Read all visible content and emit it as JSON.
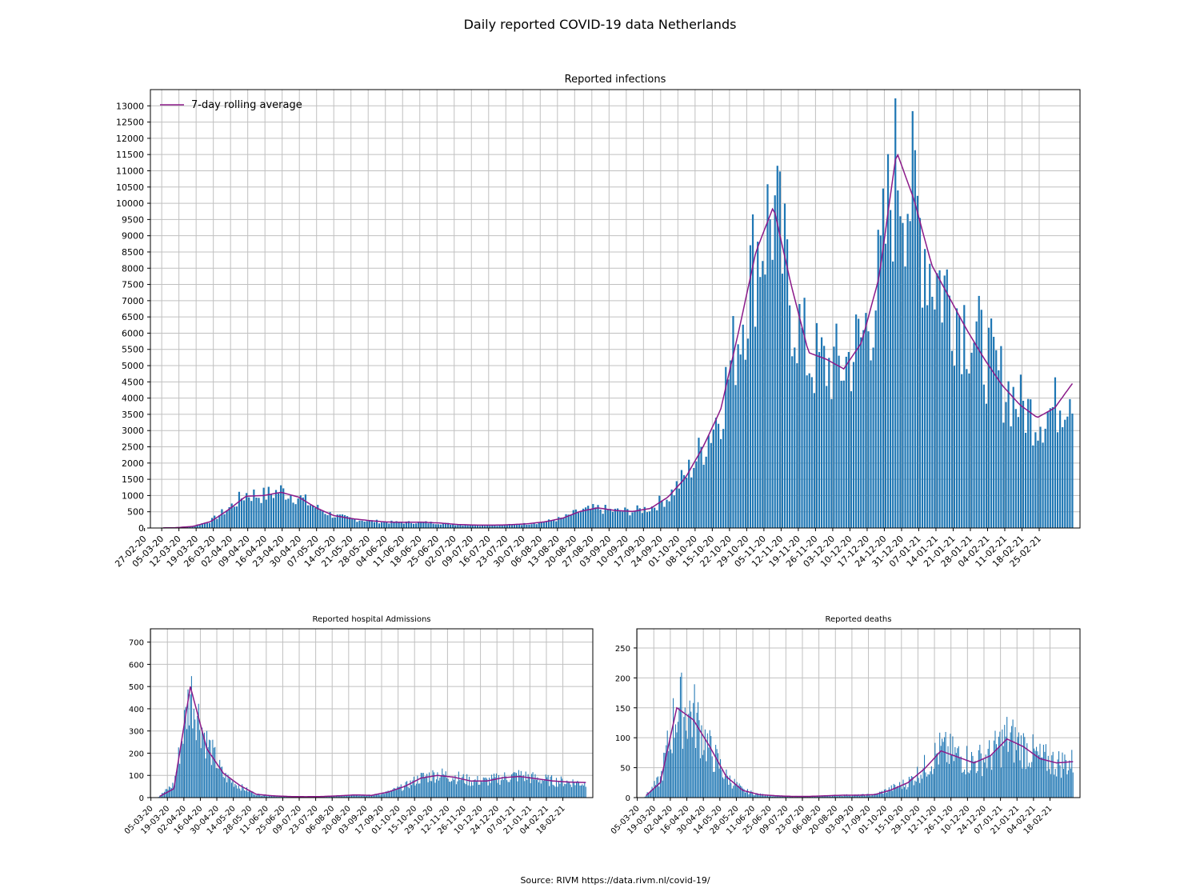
{
  "suptitle": "Daily reported COVID-19 data Netherlands",
  "source": "Source: RIVM https://data.rivm.nl/covid-19/",
  "colors": {
    "bar": "#1f77b4",
    "avg": "#8b1a89",
    "grid": "#c0c0c0"
  },
  "chart_data": [
    {
      "type": "bar",
      "title": "Reported infections",
      "legend": "7-day rolling average",
      "legend_position": "top-left",
      "grid": true,
      "x_tick_labels": [
        "27-02-20",
        "05-03-20",
        "12-03-20",
        "19-03-20",
        "26-03-20",
        "02-04-20",
        "09-04-20",
        "16-04-20",
        "23-04-20",
        "30-04-20",
        "07-05-20",
        "14-05-20",
        "21-05-20",
        "28-05-20",
        "04-06-20",
        "11-06-20",
        "18-06-20",
        "25-06-20",
        "02-07-20",
        "09-07-20",
        "16-07-20",
        "23-07-20",
        "30-07-20",
        "06-08-20",
        "13-08-20",
        "20-08-20",
        "27-08-20",
        "03-09-20",
        "10-09-20",
        "17-09-20",
        "24-09-20",
        "01-10-20",
        "08-10-20",
        "15-10-20",
        "22-10-20",
        "29-10-20",
        "05-11-20",
        "12-11-20",
        "19-11-20",
        "26-11-20",
        "03-12-20",
        "10-12-20",
        "17-12-20",
        "24-12-20",
        "31-12-20",
        "07-01-21",
        "14-01-21",
        "21-01-21",
        "28-01-21",
        "04-02-21",
        "11-02-21",
        "18-02-21",
        "25-02-21"
      ],
      "y_ticks": [
        0,
        500,
        1000,
        1500,
        2000,
        2500,
        3000,
        3500,
        4000,
        4500,
        5000,
        5500,
        6000,
        6500,
        7000,
        7500,
        8000,
        8500,
        9000,
        9500,
        10000,
        10500,
        11000,
        11500,
        12000,
        12500,
        13000
      ],
      "ylim": [
        0,
        13500
      ],
      "x_start_date": "2020-02-27",
      "bar_values_weekly_approx": [
        0,
        10,
        60,
        220,
        600,
        1050,
        1000,
        1150,
        950,
        620,
        380,
        280,
        220,
        180,
        170,
        180,
        150,
        110,
        90,
        90,
        100,
        130,
        190,
        300,
        520,
        600,
        520,
        520,
        620,
        950,
        1600,
        2500,
        3700,
        6000,
        8500,
        9800,
        7000,
        5200,
        5000,
        5000,
        5800,
        7500,
        11500,
        10000,
        8000,
        7200,
        6300,
        5400,
        4500,
        3800,
        3400,
        3700,
        4500
      ],
      "rolling_avg_weekly_approx": [
        0,
        10,
        50,
        200,
        560,
        980,
        1000,
        1100,
        950,
        620,
        380,
        290,
        230,
        185,
        175,
        180,
        155,
        110,
        90,
        88,
        100,
        130,
        190,
        300,
        510,
        620,
        540,
        510,
        600,
        950,
        1550,
        2500,
        3650,
        6000,
        8500,
        9900,
        7500,
        5400,
        5200,
        4900,
        5700,
        7700,
        11600,
        10100,
        8100,
        7100,
        6100,
        5200,
        4400,
        3800,
        3400,
        3700,
        4450
      ]
    },
    {
      "type": "bar",
      "title": "Reported hospital Admissions",
      "grid": true,
      "x_tick_labels": [
        "05-03-20",
        "19-03-20",
        "02-04-20",
        "16-04-20",
        "30-04-20",
        "14-05-20",
        "28-05-20",
        "11-06-20",
        "25-06-20",
        "09-07-20",
        "23-07-20",
        "06-08-20",
        "20-08-20",
        "03-09-20",
        "17-09-20",
        "01-10-20",
        "15-10-20",
        "29-10-20",
        "12-11-20",
        "26-11-20",
        "10-12-20",
        "24-12-20",
        "07-01-21",
        "21-01-21",
        "04-02-21",
        "18-02-21"
      ],
      "y_ticks": [
        0,
        100,
        200,
        300,
        400,
        500,
        600,
        700
      ],
      "ylim": [
        0,
        760
      ],
      "bar_values_biweekly_approx": [
        0,
        60,
        480,
        250,
        100,
        50,
        15,
        7,
        5,
        4,
        5,
        8,
        12,
        10,
        25,
        50,
        90,
        105,
        95,
        75,
        75,
        90,
        100,
        85,
        75,
        70,
        65
      ],
      "rolling_avg_biweekly_approx": [
        0,
        40,
        500,
        220,
        110,
        55,
        15,
        8,
        5,
        4,
        5,
        8,
        12,
        10,
        25,
        50,
        88,
        100,
        92,
        75,
        75,
        90,
        95,
        85,
        75,
        70,
        68
      ]
    },
    {
      "type": "bar",
      "title": "Reported deaths",
      "grid": true,
      "x_tick_labels": [
        "05-03-20",
        "19-03-20",
        "02-04-20",
        "16-04-20",
        "30-04-20",
        "14-05-20",
        "28-05-20",
        "11-06-20",
        "25-06-20",
        "09-07-20",
        "23-07-20",
        "06-08-20",
        "20-08-20",
        "03-09-20",
        "17-09-20",
        "01-10-20",
        "15-10-20",
        "29-10-20",
        "12-11-20",
        "26-11-20",
        "10-12-20",
        "24-12-20",
        "07-01-21",
        "21-01-21",
        "04-02-21",
        "18-02-21"
      ],
      "y_ticks": [
        0,
        50,
        100,
        150,
        200,
        250
      ],
      "ylim": [
        0,
        282
      ],
      "bar_values_biweekly_approx": [
        0,
        30,
        150,
        140,
        80,
        35,
        12,
        5,
        3,
        2,
        2,
        3,
        4,
        4,
        5,
        15,
        25,
        50,
        80,
        70,
        60,
        70,
        100,
        85,
        65,
        58,
        58
      ],
      "rolling_avg_biweekly_approx": [
        0,
        25,
        150,
        130,
        85,
        35,
        12,
        5,
        3,
        2,
        2,
        3,
        4,
        4,
        5,
        13,
        25,
        48,
        78,
        68,
        58,
        70,
        98,
        85,
        65,
        58,
        60
      ]
    }
  ]
}
